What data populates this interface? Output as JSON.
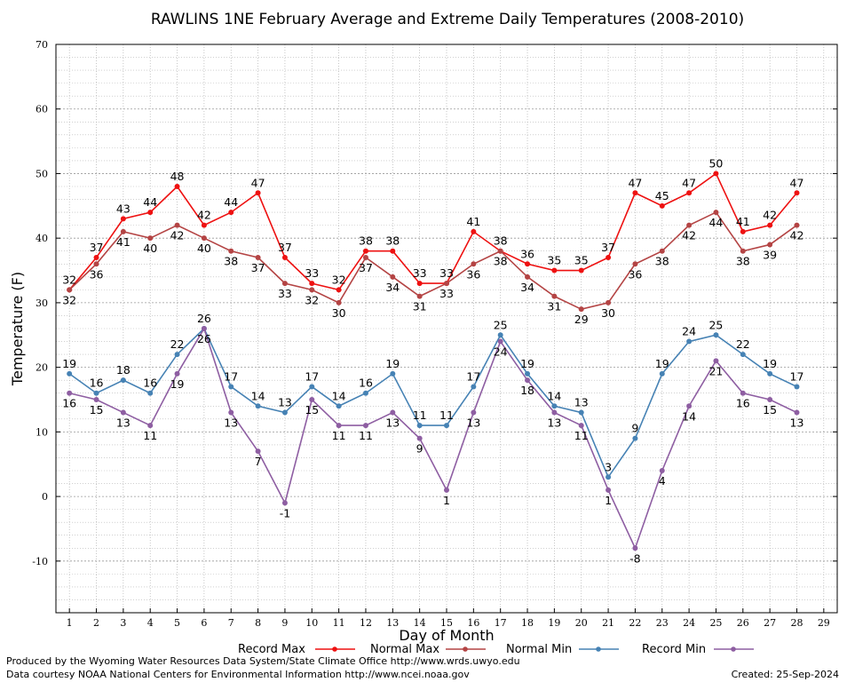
{
  "chart_data": {
    "type": "line",
    "title": "RAWLINS 1NE February Average and Extreme Daily Temperatures (2008-2010)",
    "xlabel": "Day of Month",
    "ylabel": "Temperature (F)",
    "x": [
      1,
      2,
      3,
      4,
      5,
      6,
      7,
      8,
      9,
      10,
      11,
      12,
      13,
      14,
      15,
      16,
      17,
      18,
      19,
      20,
      21,
      22,
      23,
      24,
      25,
      26,
      27,
      28
    ],
    "xticks": [
      "1",
      "2",
      "3",
      "4",
      "5",
      "6",
      "7",
      "8",
      "9",
      "10",
      "11",
      "12",
      "13",
      "14",
      "15",
      "16",
      "17",
      "18",
      "19",
      "20",
      "21",
      "22",
      "23",
      "24",
      "25",
      "26",
      "27",
      "28",
      "29"
    ],
    "xlim": [
      0.5,
      29.5
    ],
    "ylim": [
      -18,
      70
    ],
    "yticks": [
      "-10",
      "0",
      "10",
      "20",
      "30",
      "40",
      "50",
      "60",
      "70"
    ],
    "grid": true,
    "legend_position": "bottom",
    "series": [
      {
        "name": "Record Max",
        "color": "#ee1111",
        "values": [
          32,
          37,
          43,
          44,
          48,
          42,
          44,
          47,
          37,
          33,
          32,
          38,
          38,
          33,
          33,
          41,
          38,
          36,
          35,
          35,
          37,
          47,
          45,
          47,
          50,
          41,
          42,
          47
        ]
      },
      {
        "name": "Normal Max",
        "color": "#b44444",
        "values": [
          32,
          36,
          41,
          40,
          42,
          40,
          38,
          37,
          33,
          32,
          30,
          37,
          34,
          31,
          33,
          36,
          38,
          34,
          31,
          29,
          30,
          36,
          38,
          42,
          44,
          38,
          39,
          42
        ]
      },
      {
        "name": "Normal Min",
        "color": "#4682b4",
        "values": [
          19,
          16,
          18,
          16,
          22,
          26,
          17,
          14,
          13,
          17,
          14,
          16,
          19,
          11,
          11,
          17,
          25,
          19,
          14,
          13,
          3,
          9,
          19,
          24,
          25,
          22,
          19,
          17
        ]
      },
      {
        "name": "Record Min",
        "color": "#8e5ea2",
        "values": [
          16,
          15,
          13,
          11,
          19,
          26,
          13,
          7,
          -1,
          15,
          11,
          11,
          13,
          9,
          1,
          13,
          24,
          18,
          13,
          11,
          1,
          -8,
          4,
          14,
          21,
          16,
          15,
          13
        ]
      }
    ]
  },
  "footer": {
    "produced_by": "Produced by the Wyoming Water Resources Data System/State Climate Office http://www.wrds.uwyo.edu",
    "data_courtesy": "Data courtesy NOAA National Centers for Environmental Information http://www.ncei.noaa.gov",
    "created": "Created: 25-Sep-2024"
  }
}
